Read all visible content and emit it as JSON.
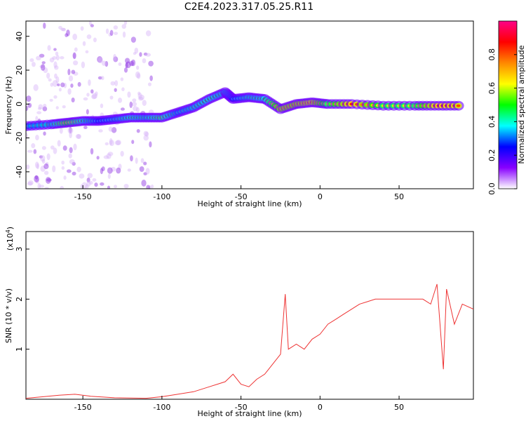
{
  "title": "C2E4.2023.317.05.25.R11",
  "spectrogram": {
    "type": "heatmap",
    "xlabel": "Height of straight line (km)",
    "ylabel": "Frequency (Hz)",
    "xlim": [
      -186,
      97
    ],
    "ylim": [
      -50,
      49
    ],
    "xticks": [
      -150,
      -100,
      -50,
      0,
      50
    ],
    "yticks": [
      -40,
      -20,
      0,
      20,
      40
    ],
    "colorbar": {
      "label": "Normalized spectral amplitude",
      "range": [
        0,
        1
      ],
      "ticks": [
        0.0,
        0.2,
        0.4,
        0.6,
        0.8
      ],
      "tick_labels": [
        "0.0",
        "0.2",
        "0.4",
        "0.6",
        "0.8"
      ],
      "colors": [
        "#ffffff",
        "#8800ff",
        "#0000ff",
        "#00ffff",
        "#00ff00",
        "#ffff00",
        "#ff8800",
        "#ff0000",
        "#ff0088"
      ]
    },
    "ridge": [
      {
        "x": -185,
        "y": -13,
        "amp": 0.4
      },
      {
        "x": -170,
        "y": -12,
        "amp": 0.45
      },
      {
        "x": -160,
        "y": -11,
        "amp": 0.65
      },
      {
        "x": -150,
        "y": -10,
        "amp": 0.5
      },
      {
        "x": -140,
        "y": -10,
        "amp": 0.35
      },
      {
        "x": -130,
        "y": -9,
        "amp": 0.4
      },
      {
        "x": -120,
        "y": -8,
        "amp": 0.5
      },
      {
        "x": -110,
        "y": -8,
        "amp": 0.45
      },
      {
        "x": -100,
        "y": -8,
        "amp": 0.55
      },
      {
        "x": -90,
        "y": -5,
        "amp": 0.4
      },
      {
        "x": -80,
        "y": -2,
        "amp": 0.45
      },
      {
        "x": -70,
        "y": 3,
        "amp": 0.5
      },
      {
        "x": -60,
        "y": 7,
        "amp": 0.45
      },
      {
        "x": -55,
        "y": 3,
        "amp": 0.35
      },
      {
        "x": -45,
        "y": 4,
        "amp": 0.45
      },
      {
        "x": -35,
        "y": 3,
        "amp": 0.5
      },
      {
        "x": -25,
        "y": -3,
        "amp": 0.75
      },
      {
        "x": -15,
        "y": 0,
        "amp": 0.75
      },
      {
        "x": -5,
        "y": 1,
        "amp": 0.8
      },
      {
        "x": 5,
        "y": 0,
        "amp": 0.6
      },
      {
        "x": 20,
        "y": 0,
        "amp": 0.85
      },
      {
        "x": 40,
        "y": -1,
        "amp": 0.6
      },
      {
        "x": 60,
        "y": -1,
        "amp": 0.6
      },
      {
        "x": 75,
        "y": -1,
        "amp": 0.85
      },
      {
        "x": 90,
        "y": -1,
        "amp": 0.8
      }
    ]
  },
  "snr": {
    "type": "line",
    "xlabel": "Height of straight line (km)",
    "ylabel": "SNR (10 * v/v)",
    "scale_label": "(x10",
    "scale_exp": "4",
    "scale_close": ")",
    "xlim": [
      -186,
      97
    ],
    "ylim": [
      0,
      3.35
    ],
    "xticks": [
      -150,
      -100,
      -50,
      0,
      50
    ],
    "yticks": [
      1,
      2,
      3
    ],
    "color": "#ee3333",
    "series": [
      {
        "x": -186,
        "y": 0.02
      },
      {
        "x": -175,
        "y": 0.05
      },
      {
        "x": -165,
        "y": 0.08
      },
      {
        "x": -155,
        "y": 0.1
      },
      {
        "x": -145,
        "y": 0.06
      },
      {
        "x": -130,
        "y": 0.03
      },
      {
        "x": -110,
        "y": 0.02
      },
      {
        "x": -100,
        "y": 0.05
      },
      {
        "x": -90,
        "y": 0.1
      },
      {
        "x": -80,
        "y": 0.15
      },
      {
        "x": -70,
        "y": 0.25
      },
      {
        "x": -65,
        "y": 0.3
      },
      {
        "x": -60,
        "y": 0.35
      },
      {
        "x": -55,
        "y": 0.5
      },
      {
        "x": -50,
        "y": 0.3
      },
      {
        "x": -45,
        "y": 0.25
      },
      {
        "x": -40,
        "y": 0.4
      },
      {
        "x": -35,
        "y": 0.5
      },
      {
        "x": -30,
        "y": 0.7
      },
      {
        "x": -25,
        "y": 0.9
      },
      {
        "x": -22,
        "y": 2.1
      },
      {
        "x": -20,
        "y": 1.0
      },
      {
        "x": -15,
        "y": 1.1
      },
      {
        "x": -10,
        "y": 1.0
      },
      {
        "x": -5,
        "y": 1.2
      },
      {
        "x": 0,
        "y": 1.3
      },
      {
        "x": 5,
        "y": 1.5
      },
      {
        "x": 10,
        "y": 1.6
      },
      {
        "x": 15,
        "y": 1.7
      },
      {
        "x": 20,
        "y": 1.8
      },
      {
        "x": 25,
        "y": 1.9
      },
      {
        "x": 30,
        "y": 1.95
      },
      {
        "x": 35,
        "y": 2.0
      },
      {
        "x": 40,
        "y": 2.0
      },
      {
        "x": 50,
        "y": 2.0
      },
      {
        "x": 60,
        "y": 2.0
      },
      {
        "x": 65,
        "y": 2.0
      },
      {
        "x": 70,
        "y": 1.9
      },
      {
        "x": 74,
        "y": 2.3
      },
      {
        "x": 78,
        "y": 0.6
      },
      {
        "x": 80,
        "y": 2.2
      },
      {
        "x": 85,
        "y": 1.5
      },
      {
        "x": 90,
        "y": 1.9
      },
      {
        "x": 97,
        "y": 1.8
      }
    ]
  }
}
